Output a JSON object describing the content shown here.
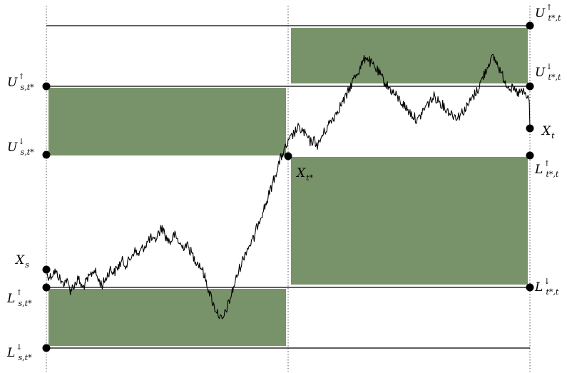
{
  "colors": {
    "box_fill": "#78936a",
    "line": "#000000",
    "grid": "#555555",
    "background": "#ffffff"
  },
  "labels": {
    "X_s": {
      "main": "X",
      "sub": "s"
    },
    "U_up_s": {
      "main": "U",
      "sup": "↑",
      "sub": "s,t*"
    },
    "U_down_s": {
      "main": "U",
      "sup": "↓",
      "sub": "s,t*"
    },
    "L_up_s": {
      "main": "L",
      "sup": "↑",
      "sub": "s,t*"
    },
    "L_down_s": {
      "main": "L",
      "sup": "↓",
      "sub": "s,t*"
    },
    "X_tstar": {
      "main": "X",
      "sub": "t*"
    },
    "U_up_t": {
      "main": "U",
      "sup": "↑",
      "sub": "t*,t"
    },
    "U_down_t": {
      "main": "U",
      "sup": "↓",
      "sub": "t*,t"
    },
    "X_t": {
      "main": "X",
      "sub": "t"
    },
    "L_up_t": {
      "main": "L",
      "sup": "↑",
      "sub": "t*,t"
    },
    "L_down_t": {
      "main": "L",
      "sup": "↓",
      "sub": "t*,t"
    }
  },
  "path_values": [
    -0.03,
    -0.07,
    0.02,
    -0.05,
    -0.18,
    -0.12,
    -0.28,
    -0.2,
    -0.1,
    -0.25,
    -0.15,
    -0.05,
    0.05,
    -0.12,
    -0.2,
    -0.08,
    0.05,
    0.0,
    0.1,
    0.18,
    0.12,
    0.22,
    0.35,
    0.28,
    0.38,
    0.45,
    0.55,
    0.48,
    0.62,
    0.72,
    0.55,
    0.48,
    0.6,
    0.5,
    0.4,
    0.45,
    0.35,
    0.22,
    0.15,
    0.05,
    -0.15,
    -0.35,
    -0.55,
    -0.65,
    -0.78,
    -0.6,
    -0.42,
    -0.2,
    0.0,
    0.18,
    0.35,
    0.45,
    0.55,
    0.8,
    0.95,
    1.1,
    1.3,
    1.5,
    1.7,
    1.88,
    2.0,
    2.12,
    2.22,
    2.3,
    2.26,
    2.18,
    2.08,
    2.1,
    2.02,
    2.18,
    2.28,
    2.4,
    2.48,
    2.6,
    2.7,
    2.8,
    2.95,
    3.1,
    3.2,
    3.32,
    3.45,
    3.35,
    3.28,
    3.2,
    3.1,
    3.0,
    2.92,
    2.85,
    2.78,
    2.7,
    2.62,
    2.55,
    2.48,
    2.42,
    2.55,
    2.65,
    2.72,
    2.8,
    2.75,
    2.68,
    2.6,
    2.55,
    2.5,
    2.48,
    2.55,
    2.62,
    2.72,
    2.82,
    2.92,
    3.08,
    3.22,
    3.38,
    3.42,
    3.3,
    3.15,
    3.02,
    2.95,
    2.9,
    2.85,
    2.88,
    2.82,
    2.72
  ]
}
